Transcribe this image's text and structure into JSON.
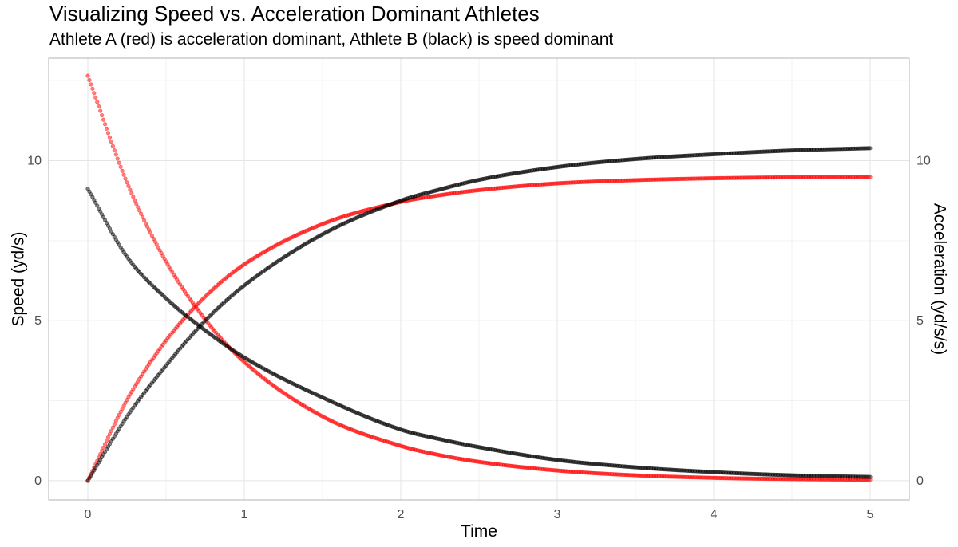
{
  "chart_data": {
    "type": "scatter",
    "title": "Visualizing Speed vs. Acceleration Dominant Athletes",
    "subtitle": "Athlete A (red) is acceleration dominant, Athlete B (black) is speed dominant",
    "xlabel": "Time",
    "ylabel": "Speed (yd/s)",
    "y2label": "Acceleration (yd/s/s)",
    "xlim": [
      -0.25,
      5.25
    ],
    "ylim": [
      -0.6,
      13.2
    ],
    "x_ticks": [
      0,
      1,
      2,
      3,
      4,
      5
    ],
    "x_tick_labels": [
      "0",
      "1",
      "2",
      "3",
      "4",
      "5"
    ],
    "y_ticks": [
      0,
      5,
      10
    ],
    "y_tick_labels": [
      "0",
      "5",
      "10"
    ],
    "y2_ticks": [
      0,
      5,
      10
    ],
    "y2_tick_labels": [
      "0",
      "5",
      "10"
    ],
    "grid": true,
    "x_range": [
      0,
      5
    ],
    "x_step": 0.01,
    "colors": {
      "athlete_a": "#ff0000",
      "athlete_b": "#000000"
    },
    "series": [
      {
        "athlete": "A",
        "measure": "speed",
        "color": "#ff0000",
        "x": [
          0,
          0.25,
          0.5,
          0.75,
          1,
          1.5,
          2,
          2.25,
          2.5,
          3,
          3.5,
          4,
          4.5,
          5
        ],
        "y": [
          0,
          2.52,
          4.38,
          5.75,
          6.76,
          8.02,
          8.71,
          8.92,
          9.08,
          9.29,
          9.39,
          9.45,
          9.48,
          9.49
        ]
      },
      {
        "athlete": "A",
        "measure": "acceleration",
        "color": "#ff0000",
        "x": [
          0,
          0.25,
          0.5,
          0.75,
          1,
          1.5,
          2,
          2.25,
          2.5,
          3,
          3.5,
          4,
          4.5,
          5
        ],
        "y": [
          12.65,
          9.32,
          6.85,
          5.04,
          3.71,
          2.01,
          1.09,
          0.8,
          0.59,
          0.32,
          0.17,
          0.09,
          0.05,
          0.03
        ]
      },
      {
        "athlete": "B",
        "measure": "speed",
        "color": "#000000",
        "x": [
          0,
          0.25,
          0.5,
          0.75,
          1,
          1.5,
          2,
          2.25,
          2.5,
          3,
          3.5,
          4,
          4.5,
          5
        ],
        "y": [
          0,
          2.0,
          3.6,
          5.0,
          6.1,
          7.7,
          8.75,
          9.1,
          9.4,
          9.8,
          10.05,
          10.2,
          10.32,
          10.39
        ]
      },
      {
        "athlete": "B",
        "measure": "acceleration",
        "color": "#000000",
        "x": [
          0,
          0.25,
          0.5,
          0.75,
          1,
          1.5,
          2,
          2.25,
          2.5,
          3,
          3.5,
          4,
          4.5,
          5
        ],
        "y": [
          9.12,
          7.0,
          5.7,
          4.7,
          3.85,
          2.6,
          1.6,
          1.3,
          1.05,
          0.65,
          0.42,
          0.27,
          0.17,
          0.12
        ]
      }
    ]
  }
}
